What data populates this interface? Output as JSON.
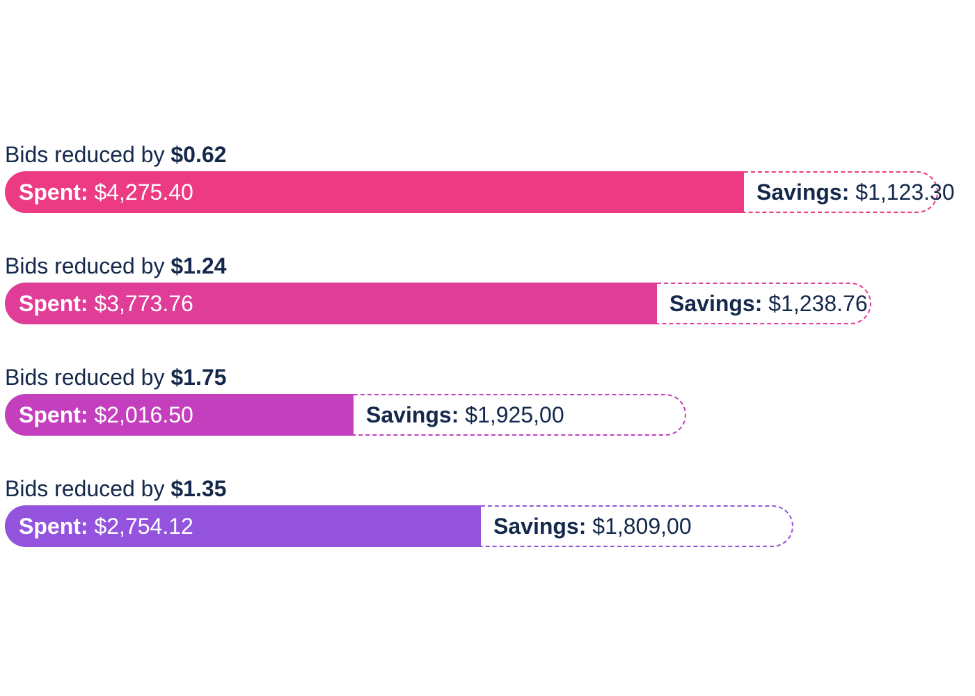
{
  "chart_data": {
    "type": "bar",
    "orientation": "horizontal",
    "stacked": true,
    "title_prefix": "Bids reduced by",
    "spent_label": "Spent:",
    "savings_label": "Savings:",
    "rows": [
      {
        "reduction": "$0.62",
        "spent_text": "$4,275.40",
        "savings_text": "$1,123.30",
        "spent": 4275.4,
        "savings": 1123.3,
        "color": "#ec3a83"
      },
      {
        "reduction": "$1.24",
        "spent_text": "$3,773.76",
        "savings_text": "$1,238.76",
        "spent": 3773.76,
        "savings": 1238.76,
        "color": "#df3d97"
      },
      {
        "reduction": "$1.75",
        "spent_text": "$2,016.50",
        "savings_text": "$1,925,00",
        "spent": 2016.5,
        "savings": 1925.0,
        "color": "#c33fbd"
      },
      {
        "reduction": "$1.35",
        "spent_text": "$2,754.12",
        "savings_text": "$1,809,00",
        "spent": 2754.12,
        "savings": 1809.0,
        "color": "#9353dc"
      }
    ]
  }
}
